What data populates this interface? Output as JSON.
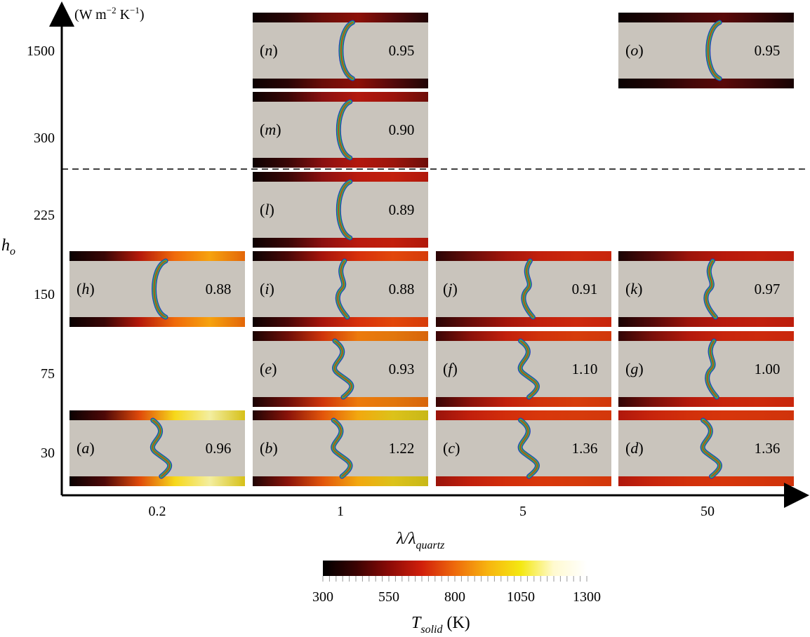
{
  "axes": {
    "y_unit": "(W m",
    "y_unit_exp1": "−2",
    "y_unit_mid": " K",
    "y_unit_exp2": "−1",
    "y_unit_close": ")",
    "y_label_main": "h",
    "y_label_sub": "o",
    "x_label_num": "λ/λ",
    "x_label_sub": "quartz",
    "y_ticks": [
      "1500",
      "300",
      "225",
      "150",
      "75",
      "30"
    ],
    "x_ticks": [
      "0.2",
      "1",
      "5",
      "50"
    ]
  },
  "panels": [
    {
      "id": "n",
      "label": "n",
      "value": "0.95",
      "tip": "0.78",
      "colors": [
        "#0d0202",
        "#2a0505",
        "#6a0d08",
        "#8d1008",
        "#55090a",
        "#200405"
      ],
      "shape": "c"
    },
    {
      "id": "o",
      "label": "o",
      "value": "0.95",
      "tip": "0.79",
      "colors": [
        "#0b0202",
        "#1e0404",
        "#420708",
        "#5a0909",
        "#3a0607",
        "#180303"
      ],
      "shape": "c"
    },
    {
      "id": "m",
      "label": "m",
      "value": "0.90",
      "tip": "0.76",
      "colors": [
        "#0d0202",
        "#3a0606",
        "#8a1010",
        "#b3180e",
        "#9c140c",
        "#6e0e09"
      ],
      "shape": "c"
    },
    {
      "id": "l",
      "label": "l",
      "value": "0.89",
      "tip": "0.76",
      "colors": [
        "#0d0202",
        "#3a0606",
        "#8c1010",
        "#b91a0e",
        "#c21f0c",
        "#b0180b"
      ],
      "shape": "c"
    },
    {
      "id": "h",
      "label": "h",
      "value": "0.88",
      "tip": "0.75",
      "colors": [
        "#0a0101",
        "#3a0606",
        "#b5190a",
        "#f06a0a",
        "#f6a20e",
        "#e36608"
      ],
      "shape": "c"
    },
    {
      "id": "i",
      "label": "i",
      "value": "0.88",
      "tip": "0.76",
      "colors": [
        "#0d0202",
        "#4a0707",
        "#a8150c",
        "#d7300b",
        "#e2470a",
        "#d63c0a"
      ],
      "shape": "w"
    },
    {
      "id": "j",
      "label": "j",
      "value": "0.91",
      "tip": "0.78",
      "colors": [
        "#2a0505",
        "#6a0d09",
        "#a3150b",
        "#c2200c",
        "#cc280c",
        "#c8250c"
      ],
      "shape": "w"
    },
    {
      "id": "k",
      "label": "k",
      "value": "0.97",
      "tip": "0.78",
      "colors": [
        "#1a0303",
        "#560909",
        "#9c140b",
        "#b8190c",
        "#c01f0c",
        "#bd1d0c"
      ],
      "shape": "w"
    },
    {
      "id": "e",
      "label": "e",
      "value": "0.93",
      "tip": "0.75",
      "colors": [
        "#1a0303",
        "#6e0e09",
        "#d0350a",
        "#ec7a0c",
        "#e2770c",
        "#d8650b"
      ],
      "shape": "s"
    },
    {
      "id": "f",
      "label": "f",
      "value": "1.10",
      "tip": "0.77",
      "colors": [
        "#3a0606",
        "#8c120a",
        "#c2200c",
        "#d1330b",
        "#d63c0a",
        "#d1380b"
      ],
      "shape": "s"
    },
    {
      "id": "g",
      "label": "g",
      "value": "1.00",
      "tip": "0.79",
      "colors": [
        "#320505",
        "#7c100a",
        "#b3190c",
        "#c8250c",
        "#cc2a0c",
        "#ca270c"
      ],
      "shape": "w"
    },
    {
      "id": "a",
      "label": "a",
      "value": "0.96",
      "tip": "0.76",
      "colors": [
        "#0a0101",
        "#4e0808",
        "#e04a0a",
        "#f6d81a",
        "#f3eea0",
        "#d6c018"
      ],
      "shape": "s"
    },
    {
      "id": "b",
      "label": "b",
      "value": "1.22",
      "tip": "0.74",
      "colors": [
        "#200404",
        "#8a130a",
        "#e3560b",
        "#f2a80f",
        "#dcc21a",
        "#c8b818"
      ],
      "shape": "s"
    },
    {
      "id": "c",
      "label": "c",
      "value": "1.36",
      "tip": "0.77",
      "colors": [
        "#9a140b",
        "#c2200c",
        "#d22e0b",
        "#d8370b",
        "#d63a0b",
        "#d3380b"
      ],
      "shape": "s"
    },
    {
      "id": "d",
      "label": "d",
      "value": "1.36",
      "tip": "0.77",
      "colors": [
        "#b0180c",
        "#c8250c",
        "#d2300b",
        "#d6350b",
        "#d4350b",
        "#d0330b"
      ],
      "shape": "s"
    }
  ],
  "colorbar": {
    "ticks": [
      "300",
      "550",
      "800",
      "1050",
      "1300"
    ],
    "label_main": "T",
    "label_sub": "solid",
    "label_unit": " (K)",
    "stops": [
      "#000000",
      "#3a0202",
      "#8a0a06",
      "#d11f0b",
      "#ee6a0c",
      "#f7b40f",
      "#f4e812",
      "#fffad0",
      "#ffffff"
    ]
  },
  "colors": {
    "channel_fill": "#c9c4bc",
    "interface_outer": "#1f3fbf",
    "interface_mid": "#3cb84a",
    "interface_inner": "#c8341a",
    "dashed_line": "#000000"
  }
}
